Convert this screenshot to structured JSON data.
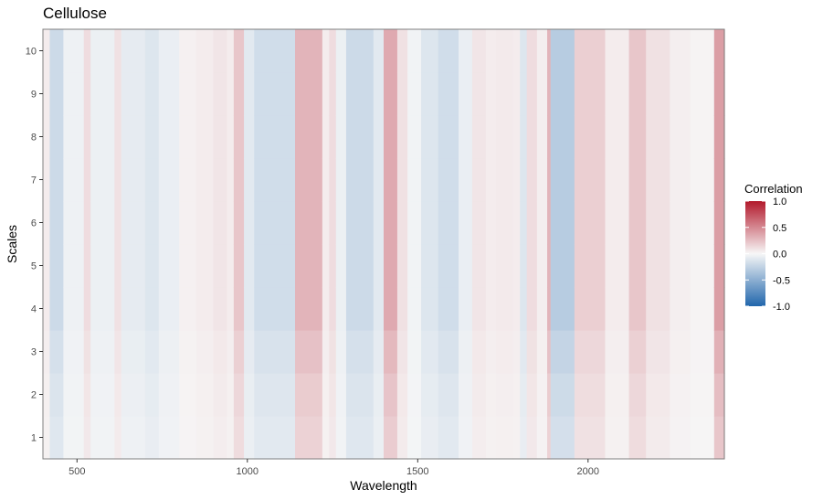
{
  "chart_data": {
    "type": "heatmap",
    "title": "Cellulose",
    "xlabel": "Wavelength",
    "ylabel": "Scales",
    "xlim": [
      400,
      2400
    ],
    "ylim": [
      0.5,
      10.5
    ],
    "x_ticks": [
      500,
      1000,
      1500,
      2000
    ],
    "y_ticks": [
      1,
      2,
      3,
      4,
      5,
      6,
      7,
      8,
      9,
      10
    ],
    "scales": [
      1,
      2,
      3,
      4,
      5,
      6,
      7,
      8,
      9,
      10
    ],
    "legend": {
      "title": "Correlation",
      "position": "right",
      "range": [
        -1.0,
        1.0
      ],
      "ticks": [
        1.0,
        0.5,
        0.0,
        -0.5,
        -1.0
      ],
      "tick_labels": [
        "1.0",
        "0.5",
        "0.0",
        "-0.5",
        "-1.0"
      ],
      "colors": {
        "low": "#2166ac",
        "mid": "#f7f7f7",
        "high": "#b2182b"
      }
    },
    "panel_border": "#7f7f7f",
    "grid": false,
    "bands": [
      {
        "from": 400,
        "to": 420,
        "value": 0.05
      },
      {
        "from": 420,
        "to": 460,
        "value": -0.2
      },
      {
        "from": 460,
        "to": 520,
        "value": -0.04
      },
      {
        "from": 520,
        "to": 540,
        "value": 0.12
      },
      {
        "from": 540,
        "to": 610,
        "value": -0.05
      },
      {
        "from": 610,
        "to": 630,
        "value": 0.1
      },
      {
        "from": 630,
        "to": 700,
        "value": -0.08
      },
      {
        "from": 700,
        "to": 740,
        "value": -0.12
      },
      {
        "from": 740,
        "to": 800,
        "value": -0.06
      },
      {
        "from": 800,
        "to": 850,
        "value": 0.03
      },
      {
        "from": 850,
        "to": 900,
        "value": 0.05
      },
      {
        "from": 900,
        "to": 940,
        "value": 0.08
      },
      {
        "from": 940,
        "to": 960,
        "value": 0.05
      },
      {
        "from": 960,
        "to": 990,
        "value": 0.22
      },
      {
        "from": 990,
        "to": 1020,
        "value": -0.1
      },
      {
        "from": 1020,
        "to": 1140,
        "value": -0.18
      },
      {
        "from": 1140,
        "to": 1220,
        "value": 0.3
      },
      {
        "from": 1220,
        "to": 1240,
        "value": 0.05
      },
      {
        "from": 1240,
        "to": 1260,
        "value": 0.12
      },
      {
        "from": 1260,
        "to": 1290,
        "value": -0.05
      },
      {
        "from": 1290,
        "to": 1370,
        "value": -0.2
      },
      {
        "from": 1370,
        "to": 1400,
        "value": -0.1
      },
      {
        "from": 1400,
        "to": 1440,
        "value": 0.35
      },
      {
        "from": 1440,
        "to": 1470,
        "value": 0.1
      },
      {
        "from": 1470,
        "to": 1510,
        "value": -0.03
      },
      {
        "from": 1510,
        "to": 1560,
        "value": -0.12
      },
      {
        "from": 1560,
        "to": 1620,
        "value": -0.18
      },
      {
        "from": 1620,
        "to": 1660,
        "value": -0.06
      },
      {
        "from": 1660,
        "to": 1700,
        "value": 0.08
      },
      {
        "from": 1700,
        "to": 1730,
        "value": 0.05
      },
      {
        "from": 1730,
        "to": 1780,
        "value": 0.06
      },
      {
        "from": 1780,
        "to": 1800,
        "value": 0.05
      },
      {
        "from": 1800,
        "to": 1820,
        "value": -0.12
      },
      {
        "from": 1820,
        "to": 1850,
        "value": 0.12
      },
      {
        "from": 1850,
        "to": 1880,
        "value": 0.04
      },
      {
        "from": 1880,
        "to": 1890,
        "value": 0.3
      },
      {
        "from": 1890,
        "to": 1960,
        "value": -0.3
      },
      {
        "from": 1960,
        "to": 2050,
        "value": 0.18
      },
      {
        "from": 2050,
        "to": 2120,
        "value": 0.05
      },
      {
        "from": 2120,
        "to": 2170,
        "value": 0.22
      },
      {
        "from": 2170,
        "to": 2240,
        "value": 0.1
      },
      {
        "from": 2240,
        "to": 2300,
        "value": 0.04
      },
      {
        "from": 2300,
        "to": 2370,
        "value": 0.02
      },
      {
        "from": 2370,
        "to": 2400,
        "value": 0.4
      }
    ]
  }
}
